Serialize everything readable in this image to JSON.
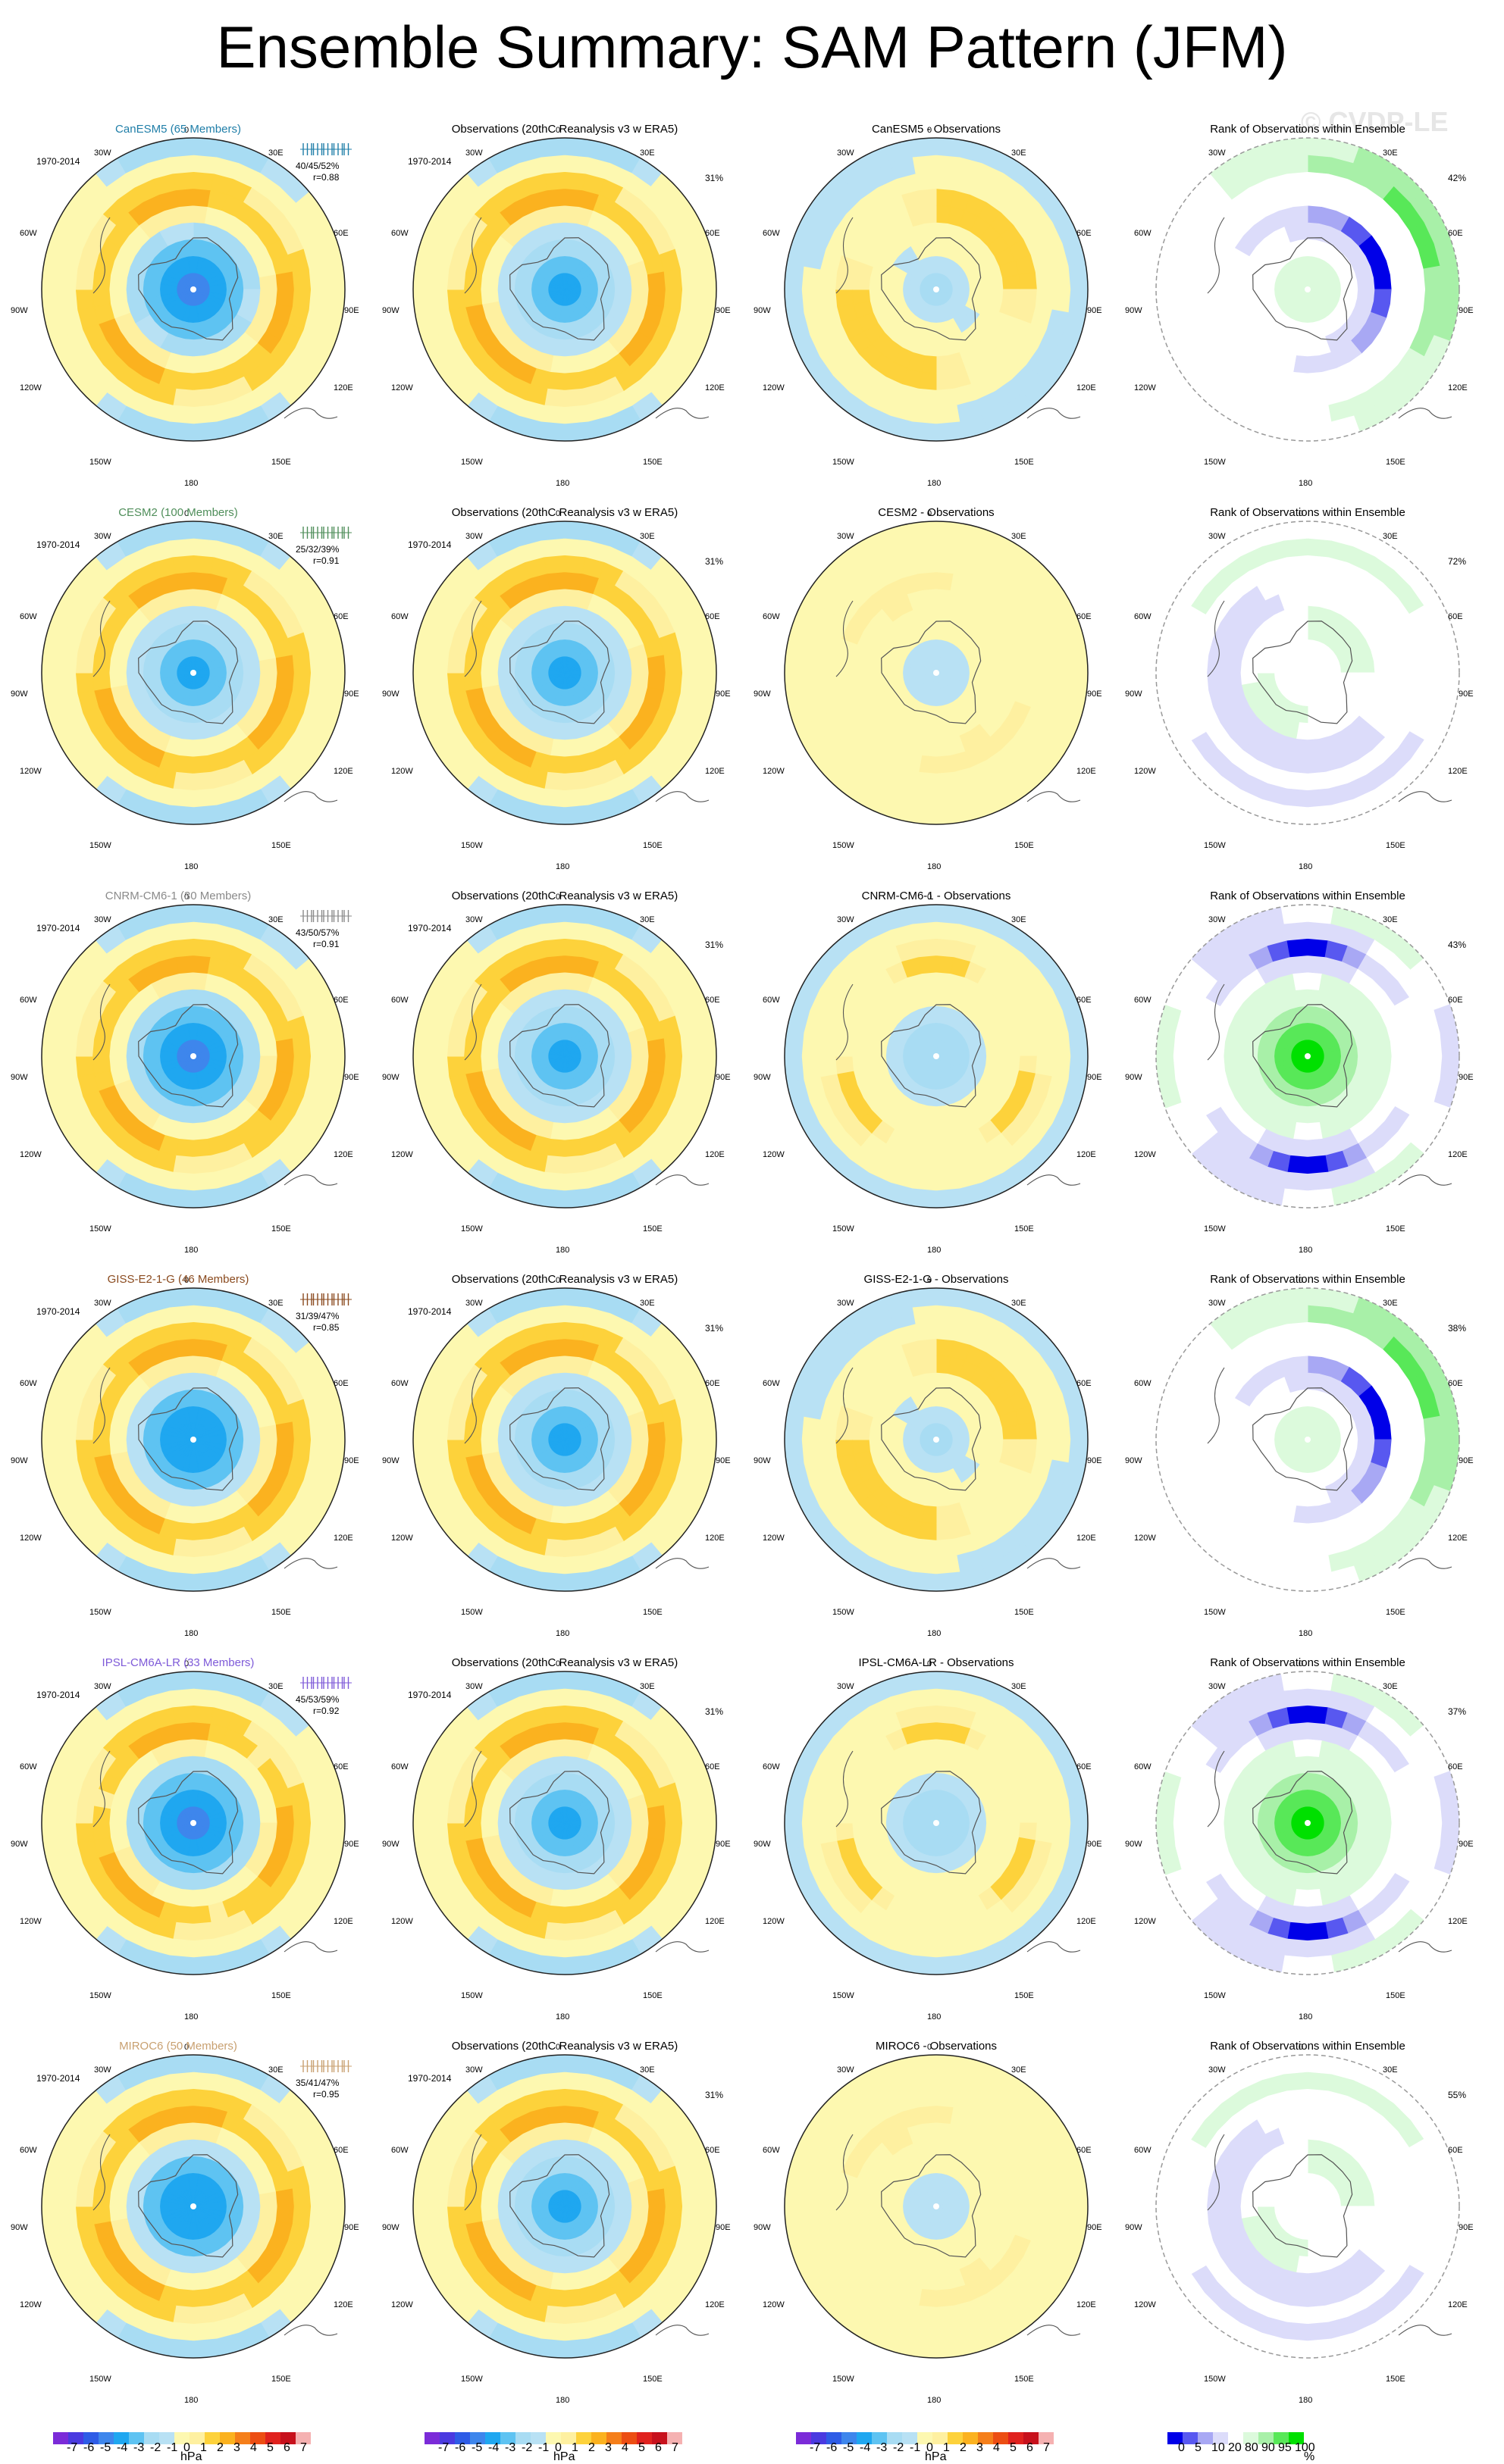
{
  "title": "Ensemble Summary: SAM Pattern (JFM)",
  "watermark": "© CVDP-LE",
  "obs_title": "Observations (20thC Reanalysis v3 w ERA5)",
  "rank_title": "Rank of Observations within Ensemble",
  "period": "1970-2014",
  "obs_pct": "31%",
  "lon_labels": {
    "n": "0",
    "ne1": "30E",
    "ne2": "60E",
    "e": "90E",
    "se2": "120E",
    "se1": "150E",
    "s": "180",
    "sw1": "150W",
    "sw2": "120W",
    "w": "90W",
    "nw2": "60W",
    "nw1": "30W"
  },
  "colors": {
    "diverging": [
      "#7b2bd8",
      "#4a3ae0",
      "#2e5ce6",
      "#3e86ec",
      "#1fa7f0",
      "#5ec3f2",
      "#a8dcf3",
      "#b8e1f4",
      "#fdf8b0",
      "#fef0a0",
      "#fdd23b",
      "#fbb21f",
      "#f57f1a",
      "#ec4e13",
      "#e0221e",
      "#c7111c",
      "#f5b1b1"
    ],
    "rank": [
      "#0000e8",
      "#5858f0",
      "#a8a8f4",
      "#dcdcfa",
      "#ffffff",
      "#dcfadc",
      "#a8f0a8",
      "#58e858",
      "#00e000"
    ]
  },
  "rows": [
    {
      "model": "CanESM5 (65 Members)",
      "model_color": "#1f7ea8",
      "diff_title": "CanESM5 - Observations",
      "stats": "40/45/52%",
      "r": "r=0.88",
      "rank_pct": "42%",
      "mod_center": -4.5,
      "obs_center": -3.4,
      "diff_pattern": "ring",
      "rank_pattern": "strong"
    },
    {
      "model": "CESM2 (100 Members)",
      "model_color": "#4f8e5a",
      "diff_title": "CESM2 - Observations",
      "stats": "25/32/39%",
      "r": "r=0.91",
      "rank_pct": "72%",
      "mod_center": -3.6,
      "obs_center": -3.4,
      "diff_pattern": "weak",
      "rank_pattern": "weak"
    },
    {
      "model": "CNRM-CM6-1 (30 Members)",
      "model_color": "#8a8a8a",
      "diff_title": "CNRM-CM6-1 - Observations",
      "stats": "43/50/57%",
      "r": "r=0.91",
      "rank_pct": "43%",
      "mod_center": -4.8,
      "obs_center": -3.4,
      "diff_pattern": "neg",
      "rank_pattern": "centergreen"
    },
    {
      "model": "GISS-E2-1-G (46 Members)",
      "model_color": "#8a4a1e",
      "diff_title": "GISS-E2-1-G - Observations",
      "stats": "31/39/47%",
      "r": "r=0.85",
      "rank_pct": "38%",
      "mod_center": -4.3,
      "obs_center": -3.4,
      "diff_pattern": "ring",
      "rank_pattern": "strong"
    },
    {
      "model": "IPSL-CM6A-LR (33 Members)",
      "model_color": "#7e5ad8",
      "diff_title": "IPSL-CM6A-LR - Observations",
      "stats": "45/53/59%",
      "r": "r=0.92",
      "rank_pct": "37%",
      "mod_center": -5.0,
      "obs_center": -3.4,
      "diff_pattern": "neg",
      "rank_pattern": "centergreen"
    },
    {
      "model": "MIROC6 (50 Members)",
      "model_color": "#c8a070",
      "diff_title": "MIROC6 - Observations",
      "stats": "35/41/47%",
      "r": "r=0.95",
      "rank_pct": "55%",
      "mod_center": -4.2,
      "obs_center": -3.4,
      "diff_pattern": "weak",
      "rank_pattern": "weak"
    }
  ],
  "colorbar_hpa": {
    "ticks": [
      "-7",
      "-6",
      "-5",
      "-4",
      "-3",
      "-2",
      "-1",
      "0",
      "1",
      "2",
      "3",
      "4",
      "5",
      "6",
      "7"
    ],
    "unit": "hPa"
  },
  "colorbar_rank": {
    "ticks": [
      "0",
      "5",
      "10",
      "20",
      "80",
      "90",
      "95",
      "100"
    ],
    "unit": "%"
  }
}
